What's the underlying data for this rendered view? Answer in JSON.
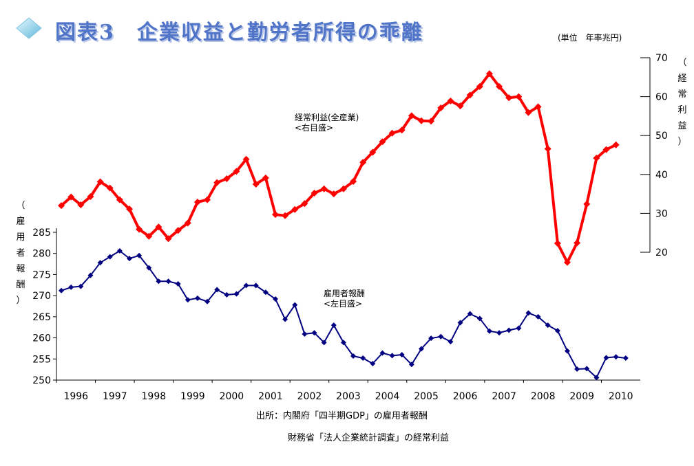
{
  "title": "図表3　企業収益と勤労者所得の乖離",
  "unit_note": "(単位　年率兆円)",
  "source_line1": "出所：内閣府「四半期GDP」の雇用者報酬",
  "source_line2": "財務省「法人企業統計調査」の経常利益",
  "colors": {
    "title": "#4f74c8",
    "profit_series": "#ff0000",
    "compensation_series": "#000080",
    "diamond_icon": "#8fd0ea"
  },
  "chart_data": {
    "type": "line",
    "title": "図表3　企業収益と勤労者所得の乖離",
    "grid": false,
    "x_axis": {
      "tick_labels": [
        "1996",
        "1997",
        "1998",
        "1999",
        "2000",
        "2001",
        "2002",
        "2003",
        "2004",
        "2005",
        "2006",
        "2007",
        "2008",
        "2009",
        "2010"
      ],
      "frequency": "quarterly"
    },
    "y_left": {
      "label": "（雇用者報酬）",
      "ylim": [
        250,
        285
      ],
      "ticks": [
        250,
        255,
        260,
        265,
        270,
        275,
        280,
        285
      ]
    },
    "y_right": {
      "label": "（経常利益）",
      "ylim": [
        20,
        70
      ],
      "ticks": [
        20,
        30,
        40,
        50,
        60,
        70
      ]
    },
    "series": [
      {
        "name": "経常利益(全産業)",
        "annotation": [
          "経常利益(全産業)",
          "<右目盛>"
        ],
        "axis": "right",
        "values": [
          32.0,
          34.2,
          32.2,
          34.3,
          38.1,
          36.5,
          33.5,
          31.1,
          25.9,
          24.1,
          26.5,
          23.5,
          25.6,
          27.5,
          32.9,
          33.5,
          37.9,
          38.9,
          40.8,
          43.9,
          37.5,
          39.1,
          29.7,
          29.4,
          31.0,
          32.5,
          35.2,
          36.3,
          35.0,
          36.3,
          38.2,
          43.1,
          45.7,
          48.4,
          50.6,
          51.4,
          55.1,
          53.8,
          53.7,
          57.1,
          58.9,
          57.6,
          60.4,
          62.6,
          65.9,
          62.6,
          59.7,
          60.0,
          55.9,
          57.4,
          46.6,
          22.3,
          17.4,
          22.4,
          32.4,
          44.2,
          46.4,
          47.6
        ]
      },
      {
        "name": "雇用者報酬",
        "annotation": [
          "雇用者報酬",
          "<左目盛>"
        ],
        "axis": "left",
        "values": [
          271.2,
          272.0,
          272.2,
          274.8,
          277.8,
          279.2,
          280.6,
          278.8,
          279.5,
          276.6,
          273.4,
          273.4,
          272.8,
          269.0,
          269.4,
          268.6,
          271.4,
          270.2,
          270.4,
          272.4,
          272.4,
          270.8,
          269.2,
          264.4,
          267.8,
          260.9,
          261.2,
          258.9,
          263.0,
          258.9,
          255.7,
          255.2,
          253.9,
          256.4,
          255.8,
          256.0,
          253.7,
          257.4,
          259.9,
          260.3,
          259.1,
          263.6,
          265.7,
          264.6,
          261.6,
          261.2,
          261.8,
          262.3,
          265.9,
          265.0,
          263.0,
          261.7,
          256.9,
          252.6,
          252.7,
          250.6,
          255.3,
          255.5,
          255.2
        ]
      }
    ]
  }
}
